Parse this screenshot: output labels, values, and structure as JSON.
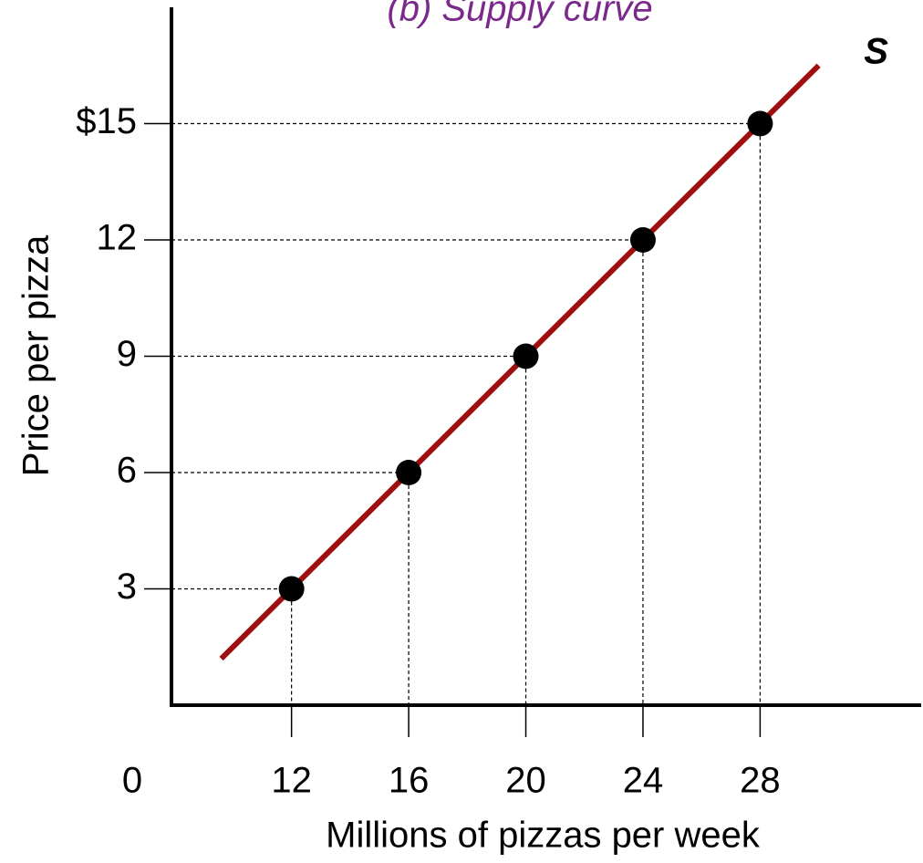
{
  "chart_data": {
    "type": "line",
    "title": "(b) Supply curve",
    "title_color": "#7b2a8c",
    "xlabel": "Millions of pizzas per week",
    "ylabel": "Price per pizza",
    "origin_label": "0",
    "xlim": [
      7.9,
      33.5
    ],
    "ylim": [
      0,
      18
    ],
    "xticks": [
      12,
      16,
      20,
      24,
      28
    ],
    "yticks": [
      3,
      6,
      9,
      12,
      {
        "value": 15,
        "label": "$15"
      }
    ],
    "series": [
      {
        "name": "S",
        "color": "#a00f0f",
        "x": [
          9.6,
          30
        ],
        "values": [
          1.2,
          16.5
        ]
      },
      {
        "color": "#000000",
        "x": [
          12,
          16,
          20,
          24,
          28
        ],
        "values": [
          3,
          6,
          9,
          12,
          15
        ]
      }
    ]
  }
}
